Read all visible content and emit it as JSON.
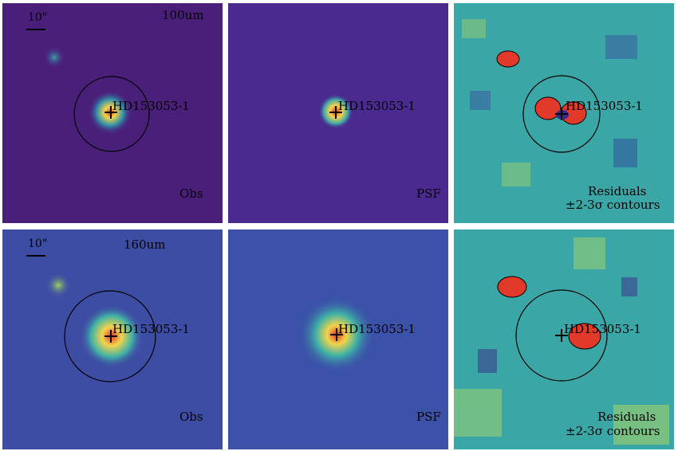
{
  "rows": [
    {
      "band": "100um",
      "scale_bar": "10\"",
      "source": "HD153053-1",
      "obs_label": "Obs",
      "psf_label": "PSF",
      "residual_label_1": "Residuals",
      "residual_label_2": "±2-3σ contours"
    },
    {
      "band": "160um",
      "scale_bar": "10\"",
      "source": "HD153053-1",
      "obs_label": "Obs",
      "psf_label": "PSF",
      "residual_label_1": "Residuals",
      "residual_label_2": "±2-3σ contours"
    }
  ],
  "colors": {
    "background_obs_100": "#4a1f7a",
    "background_psf_100": "#4b2a8f",
    "background_obs_160": "#3e4da4",
    "background_psf_160": "#3b52a8",
    "residual_base": "#3aa7a6",
    "peak": "#e23a2a",
    "halo": "#f2d44b"
  }
}
